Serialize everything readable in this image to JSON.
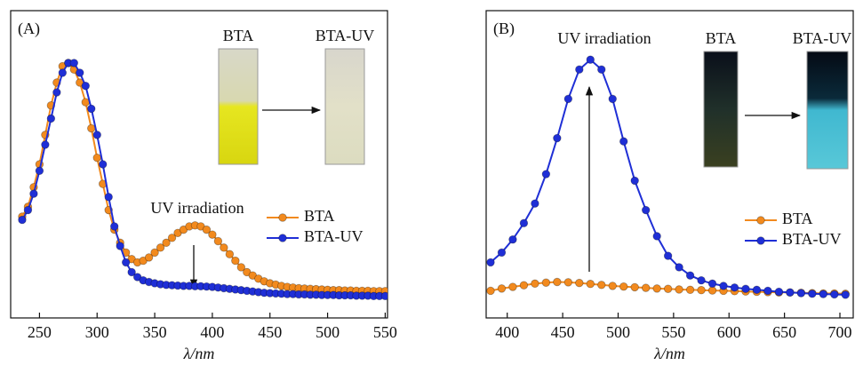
{
  "chart_data": [
    {
      "type": "line",
      "panel_label": "(A)",
      "x_label": "λ/nm",
      "annotation": "UV irradiation",
      "photo_labels": [
        "BTA",
        "BTA-UV"
      ],
      "x": [
        235,
        240,
        245,
        250,
        255,
        260,
        265,
        270,
        275,
        280,
        285,
        290,
        295,
        300,
        305,
        310,
        315,
        320,
        325,
        330,
        335,
        340,
        345,
        350,
        355,
        360,
        365,
        370,
        375,
        380,
        385,
        390,
        395,
        400,
        405,
        410,
        415,
        420,
        425,
        430,
        435,
        440,
        445,
        450,
        455,
        460,
        465,
        470,
        475,
        480,
        485,
        490,
        495,
        500,
        505,
        510,
        515,
        520,
        525,
        530,
        535,
        540,
        545,
        550
      ],
      "series": [
        {
          "name": "BTA",
          "color": "#f28a1e",
          "values": [
            0.37,
            0.4,
            0.46,
            0.53,
            0.62,
            0.71,
            0.78,
            0.83,
            0.84,
            0.82,
            0.78,
            0.72,
            0.64,
            0.55,
            0.47,
            0.39,
            0.33,
            0.29,
            0.26,
            0.24,
            0.23,
            0.235,
            0.245,
            0.26,
            0.275,
            0.29,
            0.305,
            0.32,
            0.33,
            0.34,
            0.343,
            0.34,
            0.33,
            0.315,
            0.295,
            0.275,
            0.255,
            0.235,
            0.215,
            0.2,
            0.19,
            0.18,
            0.172,
            0.166,
            0.162,
            0.158,
            0.155,
            0.153,
            0.151,
            0.15,
            0.149,
            0.148,
            0.147,
            0.146,
            0.145,
            0.145,
            0.144,
            0.144,
            0.143,
            0.143,
            0.143,
            0.142,
            0.142,
            0.142
          ]
        },
        {
          "name": "BTA-UV",
          "color": "#1f2fd6",
          "values": [
            0.36,
            0.39,
            0.44,
            0.51,
            0.59,
            0.67,
            0.75,
            0.81,
            0.84,
            0.84,
            0.81,
            0.77,
            0.7,
            0.62,
            0.53,
            0.43,
            0.34,
            0.28,
            0.23,
            0.2,
            0.185,
            0.175,
            0.17,
            0.166,
            0.163,
            0.161,
            0.16,
            0.159,
            0.158,
            0.158,
            0.157,
            0.157,
            0.156,
            0.155,
            0.153,
            0.151,
            0.149,
            0.147,
            0.145,
            0.143,
            0.141,
            0.139,
            0.137,
            0.136,
            0.135,
            0.134,
            0.133,
            0.133,
            0.132,
            0.132,
            0.131,
            0.131,
            0.13,
            0.13,
            0.13,
            0.129,
            0.129,
            0.129,
            0.128,
            0.128,
            0.128,
            0.127,
            0.127,
            0.127
          ]
        }
      ],
      "xlim": [
        225,
        552
      ],
      "xticks": [
        250,
        300,
        350,
        400,
        450,
        500,
        550
      ],
      "ylim": [
        0.06,
        1.0
      ]
    },
    {
      "type": "line",
      "panel_label": "(B)",
      "x_label": "λ/nm",
      "annotation": "UV irradiation",
      "photo_labels": [
        "BTA",
        "BTA-UV"
      ],
      "x": [
        385,
        395,
        405,
        415,
        425,
        435,
        445,
        455,
        465,
        475,
        485,
        495,
        505,
        515,
        525,
        535,
        545,
        555,
        565,
        575,
        585,
        595,
        605,
        615,
        625,
        635,
        645,
        655,
        665,
        675,
        685,
        695,
        705
      ],
      "series": [
        {
          "name": "BTA",
          "color": "#f28a1e",
          "values": [
            0.143,
            0.15,
            0.155,
            0.16,
            0.165,
            0.168,
            0.17,
            0.169,
            0.167,
            0.164,
            0.161,
            0.158,
            0.156,
            0.154,
            0.152,
            0.15,
            0.149,
            0.147,
            0.146,
            0.145,
            0.144,
            0.143,
            0.142,
            0.141,
            0.14,
            0.139,
            0.138,
            0.138,
            0.137,
            0.136,
            0.135,
            0.135,
            0.134
          ]
        },
        {
          "name": "BTA-UV",
          "color": "#1f2fd6",
          "values": [
            0.23,
            0.26,
            0.3,
            0.35,
            0.41,
            0.5,
            0.61,
            0.73,
            0.82,
            0.85,
            0.82,
            0.73,
            0.6,
            0.48,
            0.39,
            0.31,
            0.25,
            0.215,
            0.19,
            0.175,
            0.165,
            0.158,
            0.153,
            0.149,
            0.146,
            0.143,
            0.14,
            0.138,
            0.136,
            0.134,
            0.133,
            0.132,
            0.131
          ]
        }
      ],
      "xlim": [
        381,
        712
      ],
      "xticks": [
        400,
        450,
        500,
        550,
        600,
        650,
        700
      ],
      "ylim": [
        0.06,
        1.0
      ]
    }
  ]
}
